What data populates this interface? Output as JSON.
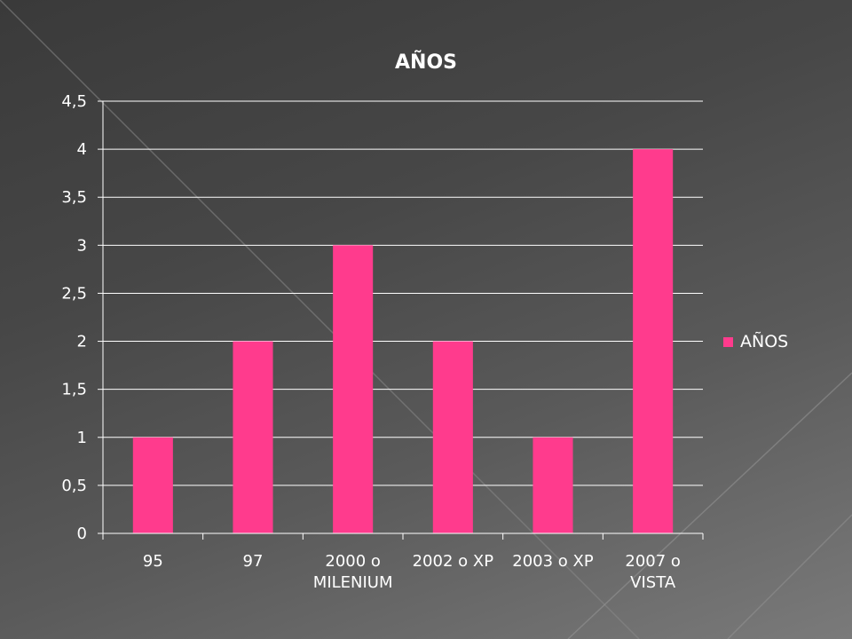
{
  "chart_data": {
    "type": "bar",
    "title": "AÑOS",
    "categories": [
      "95",
      "97",
      "2000 o MILENIUM",
      "2002 o XP",
      "2003 o XP",
      "2007 o VISTA"
    ],
    "category_lines": [
      [
        "95"
      ],
      [
        "97"
      ],
      [
        "2000 o",
        "MILENIUM"
      ],
      [
        "2002 o XP"
      ],
      [
        "2003 o XP"
      ],
      [
        "2007 o",
        "VISTA"
      ]
    ],
    "series": [
      {
        "name": "AÑOS",
        "values": [
          1,
          2,
          3,
          2,
          1,
          4
        ]
      }
    ],
    "ylim": [
      0,
      4.5
    ],
    "yticks": [
      "0",
      "0,5",
      "1",
      "1,5",
      "2",
      "2,5",
      "3",
      "3,5",
      "4",
      "4,5"
    ],
    "ytick_values": [
      0,
      0.5,
      1,
      1.5,
      2,
      2.5,
      3,
      3.5,
      4,
      4.5
    ],
    "xlabel": "",
    "ylabel": "",
    "grid": true,
    "legend_position": "right",
    "colors": {
      "bar": "#ff3b8d",
      "grid": "#ffffff",
      "text": "#ffffff"
    }
  }
}
